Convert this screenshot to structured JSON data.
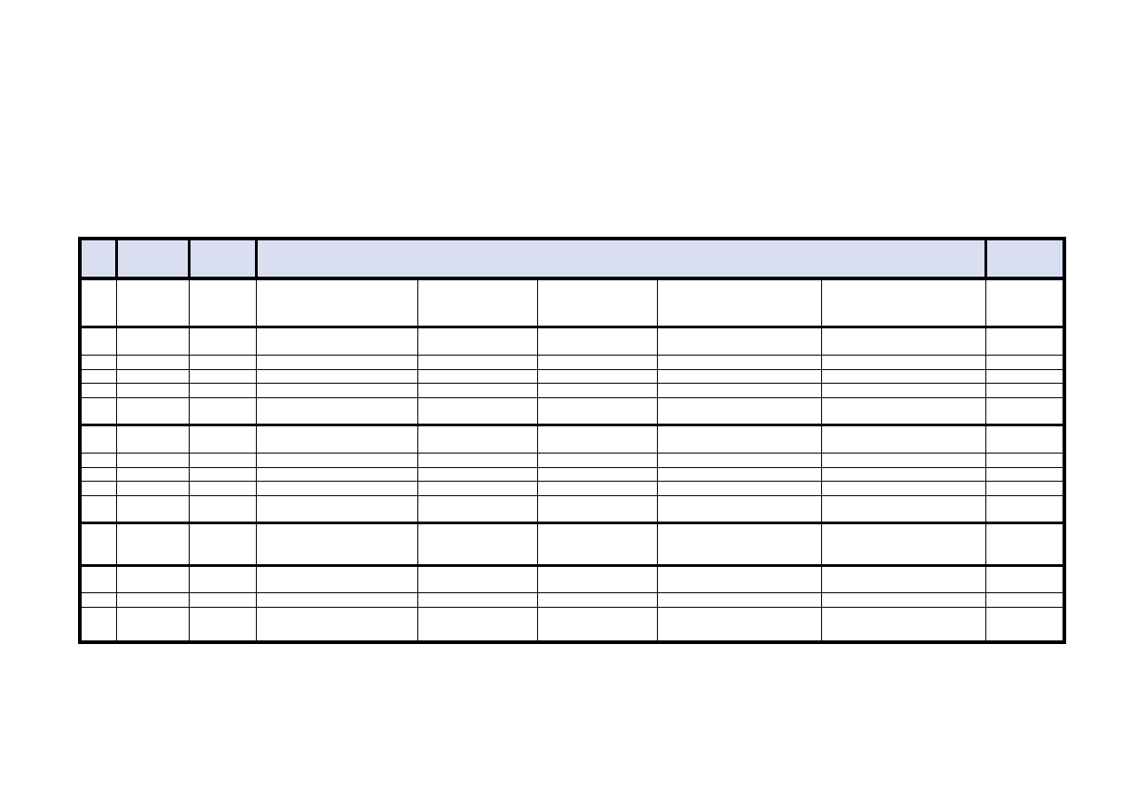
{
  "page": {
    "background_color": "#ffffff",
    "content": "blank table form, no visible text"
  },
  "table": {
    "border_color": "#000000",
    "header": {
      "fill_color": "#d9def1",
      "cells": [
        "",
        "",
        "",
        "",
        ""
      ],
      "merged_center_cell_span": 5
    },
    "columns": 9,
    "row_count": 15,
    "thick_bottom_after_rows": [
      1,
      6,
      11,
      12
    ],
    "rows": [
      {
        "cells": [
          "",
          "",
          "",
          "",
          "",
          "",
          "",
          "",
          ""
        ]
      },
      {
        "cells": [
          "",
          "",
          "",
          "",
          "",
          "",
          "",
          "",
          ""
        ]
      },
      {
        "cells": [
          "",
          "",
          "",
          "",
          "",
          "",
          "",
          "",
          ""
        ]
      },
      {
        "cells": [
          "",
          "",
          "",
          "",
          "",
          "",
          "",
          "",
          ""
        ]
      },
      {
        "cells": [
          "",
          "",
          "",
          "",
          "",
          "",
          "",
          "",
          ""
        ]
      },
      {
        "cells": [
          "",
          "",
          "",
          "",
          "",
          "",
          "",
          "",
          ""
        ]
      },
      {
        "cells": [
          "",
          "",
          "",
          "",
          "",
          "",
          "",
          "",
          ""
        ]
      },
      {
        "cells": [
          "",
          "",
          "",
          "",
          "",
          "",
          "",
          "",
          ""
        ]
      },
      {
        "cells": [
          "",
          "",
          "",
          "",
          "",
          "",
          "",
          "",
          ""
        ]
      },
      {
        "cells": [
          "",
          "",
          "",
          "",
          "",
          "",
          "",
          "",
          ""
        ]
      },
      {
        "cells": [
          "",
          "",
          "",
          "",
          "",
          "",
          "",
          "",
          ""
        ]
      },
      {
        "cells": [
          "",
          "",
          "",
          "",
          "",
          "",
          "",
          "",
          ""
        ]
      },
      {
        "cells": [
          "",
          "",
          "",
          "",
          "",
          "",
          "",
          "",
          ""
        ]
      },
      {
        "cells": [
          "",
          "",
          "",
          "",
          "",
          "",
          "",
          "",
          ""
        ]
      },
      {
        "cells": [
          "",
          "",
          "",
          "",
          "",
          "",
          "",
          "",
          ""
        ]
      }
    ]
  }
}
